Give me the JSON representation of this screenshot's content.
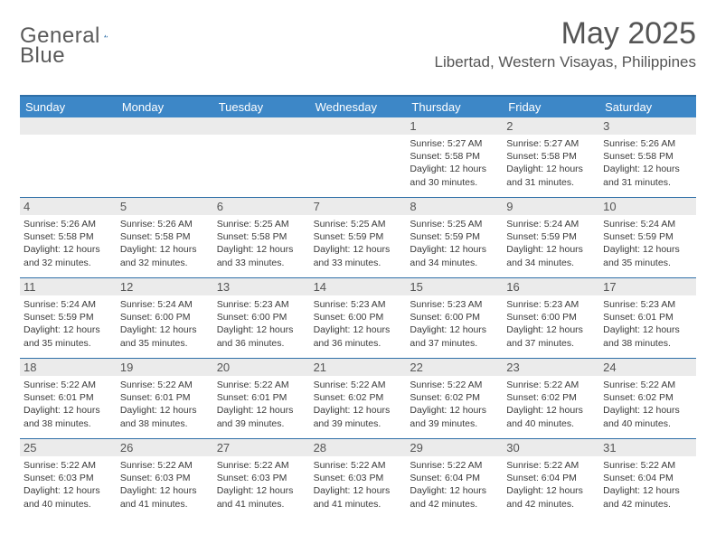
{
  "brand": {
    "name_a": "General",
    "name_b": "Blue"
  },
  "title": "May 2025",
  "location": "Libertad, Western Visayas, Philippines",
  "colors": {
    "header_bg": "#3d87c7",
    "accent_border": "#2f6fa7",
    "daynum_bg": "#ebebeb",
    "text": "#333333",
    "muted": "#555555"
  },
  "typography": {
    "title_fontsize": 34,
    "location_fontsize": 17,
    "dow_fontsize": 13,
    "daynum_fontsize": 13,
    "info_fontsize": 10.5
  },
  "dow": [
    "Sunday",
    "Monday",
    "Tuesday",
    "Wednesday",
    "Thursday",
    "Friday",
    "Saturday"
  ],
  "labels": {
    "sunrise": "Sunrise:",
    "sunset": "Sunset:",
    "daylight": "Daylight:"
  },
  "weeks": [
    [
      null,
      null,
      null,
      null,
      {
        "n": "1",
        "sunrise": "5:27 AM",
        "sunset": "5:58 PM",
        "daylight": "12 hours and 30 minutes."
      },
      {
        "n": "2",
        "sunrise": "5:27 AM",
        "sunset": "5:58 PM",
        "daylight": "12 hours and 31 minutes."
      },
      {
        "n": "3",
        "sunrise": "5:26 AM",
        "sunset": "5:58 PM",
        "daylight": "12 hours and 31 minutes."
      }
    ],
    [
      {
        "n": "4",
        "sunrise": "5:26 AM",
        "sunset": "5:58 PM",
        "daylight": "12 hours and 32 minutes."
      },
      {
        "n": "5",
        "sunrise": "5:26 AM",
        "sunset": "5:58 PM",
        "daylight": "12 hours and 32 minutes."
      },
      {
        "n": "6",
        "sunrise": "5:25 AM",
        "sunset": "5:58 PM",
        "daylight": "12 hours and 33 minutes."
      },
      {
        "n": "7",
        "sunrise": "5:25 AM",
        "sunset": "5:59 PM",
        "daylight": "12 hours and 33 minutes."
      },
      {
        "n": "8",
        "sunrise": "5:25 AM",
        "sunset": "5:59 PM",
        "daylight": "12 hours and 34 minutes."
      },
      {
        "n": "9",
        "sunrise": "5:24 AM",
        "sunset": "5:59 PM",
        "daylight": "12 hours and 34 minutes."
      },
      {
        "n": "10",
        "sunrise": "5:24 AM",
        "sunset": "5:59 PM",
        "daylight": "12 hours and 35 minutes."
      }
    ],
    [
      {
        "n": "11",
        "sunrise": "5:24 AM",
        "sunset": "5:59 PM",
        "daylight": "12 hours and 35 minutes."
      },
      {
        "n": "12",
        "sunrise": "5:24 AM",
        "sunset": "6:00 PM",
        "daylight": "12 hours and 35 minutes."
      },
      {
        "n": "13",
        "sunrise": "5:23 AM",
        "sunset": "6:00 PM",
        "daylight": "12 hours and 36 minutes."
      },
      {
        "n": "14",
        "sunrise": "5:23 AM",
        "sunset": "6:00 PM",
        "daylight": "12 hours and 36 minutes."
      },
      {
        "n": "15",
        "sunrise": "5:23 AM",
        "sunset": "6:00 PM",
        "daylight": "12 hours and 37 minutes."
      },
      {
        "n": "16",
        "sunrise": "5:23 AM",
        "sunset": "6:00 PM",
        "daylight": "12 hours and 37 minutes."
      },
      {
        "n": "17",
        "sunrise": "5:23 AM",
        "sunset": "6:01 PM",
        "daylight": "12 hours and 38 minutes."
      }
    ],
    [
      {
        "n": "18",
        "sunrise": "5:22 AM",
        "sunset": "6:01 PM",
        "daylight": "12 hours and 38 minutes."
      },
      {
        "n": "19",
        "sunrise": "5:22 AM",
        "sunset": "6:01 PM",
        "daylight": "12 hours and 38 minutes."
      },
      {
        "n": "20",
        "sunrise": "5:22 AM",
        "sunset": "6:01 PM",
        "daylight": "12 hours and 39 minutes."
      },
      {
        "n": "21",
        "sunrise": "5:22 AM",
        "sunset": "6:02 PM",
        "daylight": "12 hours and 39 minutes."
      },
      {
        "n": "22",
        "sunrise": "5:22 AM",
        "sunset": "6:02 PM",
        "daylight": "12 hours and 39 minutes."
      },
      {
        "n": "23",
        "sunrise": "5:22 AM",
        "sunset": "6:02 PM",
        "daylight": "12 hours and 40 minutes."
      },
      {
        "n": "24",
        "sunrise": "5:22 AM",
        "sunset": "6:02 PM",
        "daylight": "12 hours and 40 minutes."
      }
    ],
    [
      {
        "n": "25",
        "sunrise": "5:22 AM",
        "sunset": "6:03 PM",
        "daylight": "12 hours and 40 minutes."
      },
      {
        "n": "26",
        "sunrise": "5:22 AM",
        "sunset": "6:03 PM",
        "daylight": "12 hours and 41 minutes."
      },
      {
        "n": "27",
        "sunrise": "5:22 AM",
        "sunset": "6:03 PM",
        "daylight": "12 hours and 41 minutes."
      },
      {
        "n": "28",
        "sunrise": "5:22 AM",
        "sunset": "6:03 PM",
        "daylight": "12 hours and 41 minutes."
      },
      {
        "n": "29",
        "sunrise": "5:22 AM",
        "sunset": "6:04 PM",
        "daylight": "12 hours and 42 minutes."
      },
      {
        "n": "30",
        "sunrise": "5:22 AM",
        "sunset": "6:04 PM",
        "daylight": "12 hours and 42 minutes."
      },
      {
        "n": "31",
        "sunrise": "5:22 AM",
        "sunset": "6:04 PM",
        "daylight": "12 hours and 42 minutes."
      }
    ]
  ]
}
